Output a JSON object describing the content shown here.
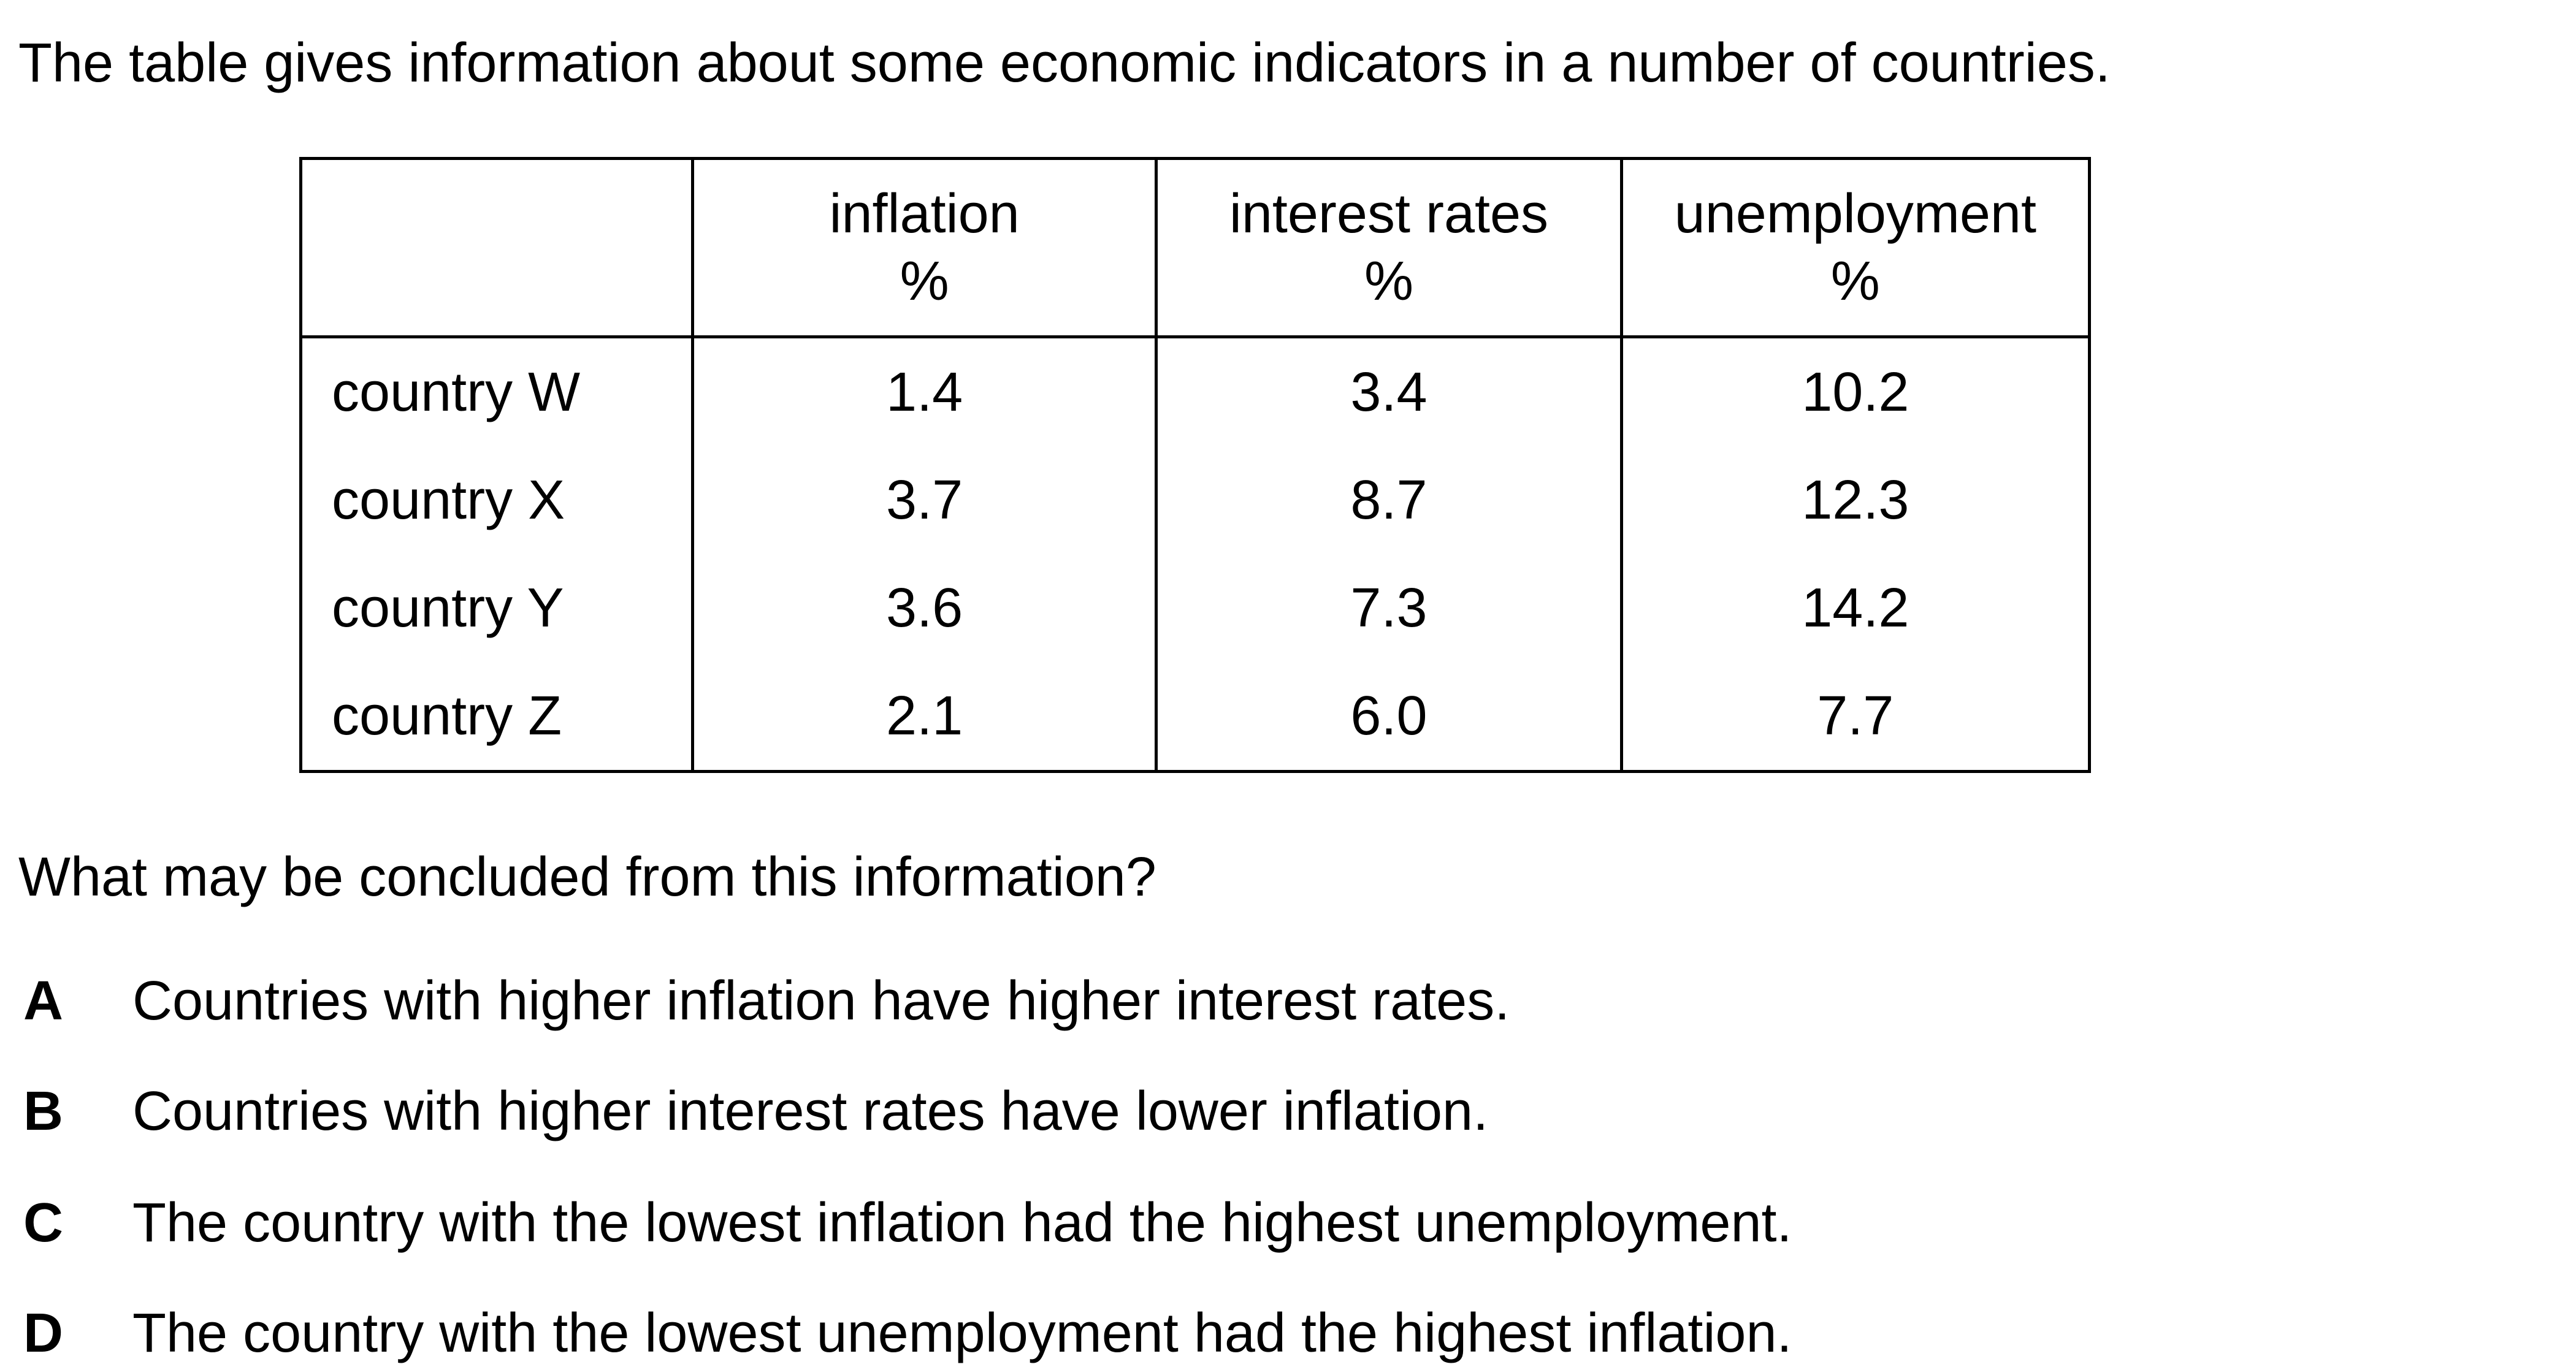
{
  "intro": "The table gives information about some economic indicators in a number of countries.",
  "table": {
    "headers": [
      {
        "line1": "",
        "line2": ""
      },
      {
        "line1": "inflation",
        "line2": "%"
      },
      {
        "line1": "interest rates",
        "line2": "%"
      },
      {
        "line1": "unemployment",
        "line2": "%"
      }
    ],
    "rows": [
      {
        "country": "country W",
        "inflation": "1.4",
        "interest": "3.4",
        "unemployment": "10.2"
      },
      {
        "country": "country X",
        "inflation": "3.7",
        "interest": "8.7",
        "unemployment": "12.3"
      },
      {
        "country": "country Y",
        "inflation": "3.6",
        "interest": "7.3",
        "unemployment": "14.2"
      },
      {
        "country": "country Z",
        "inflation": "2.1",
        "interest": "6.0",
        "unemployment": "7.7"
      }
    ]
  },
  "question": "What may be concluded from this information?",
  "options": [
    {
      "letter": "A",
      "text": "Countries with higher inflation have higher interest rates."
    },
    {
      "letter": "B",
      "text": "Countries with higher interest rates have lower inflation."
    },
    {
      "letter": "C",
      "text": "The country with the lowest inflation had the highest unemployment."
    },
    {
      "letter": "D",
      "text": "The country with the lowest unemployment had the highest inflation."
    }
  ]
}
